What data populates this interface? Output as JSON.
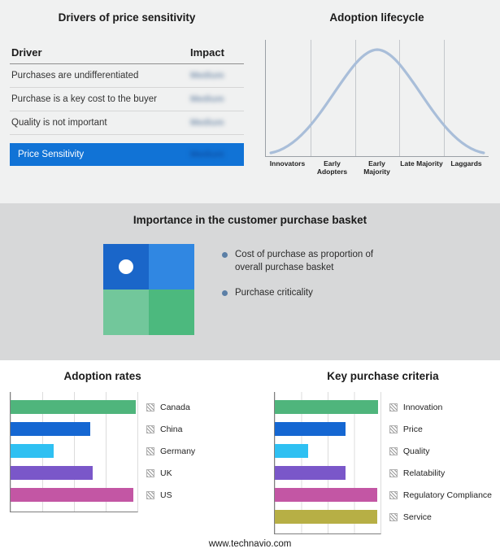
{
  "drivers": {
    "title": "Drivers of price sensitivity",
    "col_driver": "Driver",
    "col_impact": "Impact",
    "rows": [
      {
        "driver": "Purchases are undifferentiated",
        "impact": "Medium"
      },
      {
        "driver": "Purchase is a key cost to the buyer",
        "impact": "Medium"
      },
      {
        "driver": "Quality is not important",
        "impact": "Medium"
      }
    ],
    "highlight": {
      "driver": "Price Sensitivity",
      "impact": "Medium",
      "bg": "#1173d6"
    }
  },
  "lifecycle": {
    "title": "Adoption lifecycle",
    "curve_color": "#a9bed9"
  },
  "basket": {
    "title": "Importance in the customer purchase basket",
    "bullets": [
      "Cost of purchase as proportion of overall purchase basket",
      "Purchase criticality"
    ],
    "bullet_color": "#5b7fa6",
    "quadrant": {
      "top_left": "#1a66c9",
      "top_right": "#3087e2",
      "bottom_left": "#72c79b",
      "bottom_right": "#4cb97e"
    }
  },
  "footer": {
    "url": "www.technavio.com"
  },
  "chart_data": [
    {
      "type": "line",
      "title": "Adoption lifecycle",
      "categories": [
        "Innovators",
        "Early Adopters",
        "Early Majority",
        "Late Majority",
        "Laggards"
      ],
      "relative_curve_heights": [
        0.08,
        0.55,
        1.0,
        0.6,
        0.1
      ],
      "note": "bell-shaped adoption curve; no numeric axes shown",
      "grid": "vertical stage dividers"
    },
    {
      "type": "bar",
      "title": "Adoption rates",
      "orientation": "horizontal",
      "xlim": [
        0,
        100
      ],
      "gridline_interval": 25,
      "series": [
        {
          "label": "Canada",
          "value": 99,
          "color": "#4fb57c"
        },
        {
          "label": "China",
          "value": 63,
          "color": "#1567d2"
        },
        {
          "label": "Germany",
          "value": 34,
          "color": "#2fc0f2"
        },
        {
          "label": "UK",
          "value": 65,
          "color": "#7a57c9"
        },
        {
          "label": "US",
          "value": 97,
          "color": "#c356a4"
        }
      ]
    },
    {
      "type": "bar",
      "title": "Key purchase criteria",
      "orientation": "horizontal",
      "xlim": [
        0,
        100
      ],
      "gridline_interval": 25,
      "series": [
        {
          "label": "Innovation",
          "value": 98,
          "color": "#4fb57c"
        },
        {
          "label": "Price",
          "value": 67,
          "color": "#1567d2"
        },
        {
          "label": "Quality",
          "value": 32,
          "color": "#2fc0f2"
        },
        {
          "label": "Relatability",
          "value": 67,
          "color": "#7a57c9"
        },
        {
          "label": "Regulatory Compliance",
          "value": 97,
          "color": "#c356a4"
        },
        {
          "label": "Service",
          "value": 97,
          "color": "#b7af45"
        }
      ]
    }
  ]
}
